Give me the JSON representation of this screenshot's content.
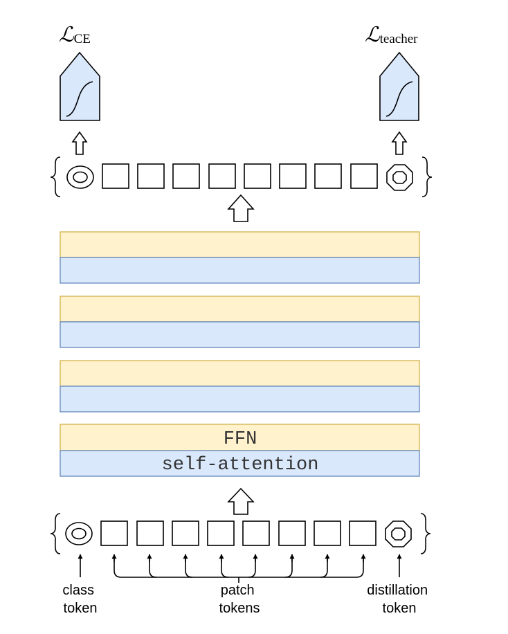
{
  "losses": {
    "left": {
      "symbol": "ℒ",
      "subscript": "CE"
    },
    "right": {
      "symbol": "ℒ",
      "subscript": "teacher"
    }
  },
  "layers": {
    "ffn_label": "FFN",
    "attention_label": "self-attention"
  },
  "labels": {
    "class_token": [
      "class",
      "token"
    ],
    "patch_tokens": [
      "patch",
      "tokens"
    ],
    "distillation_token": [
      "distillation",
      "token"
    ]
  },
  "colors": {
    "ffn_fill": "#fff2cc",
    "ffn_stroke": "#d6b656",
    "attention_fill": "#dae8fc",
    "attention_stroke": "#6c8ebf",
    "head_fill": "#dae8fc"
  }
}
